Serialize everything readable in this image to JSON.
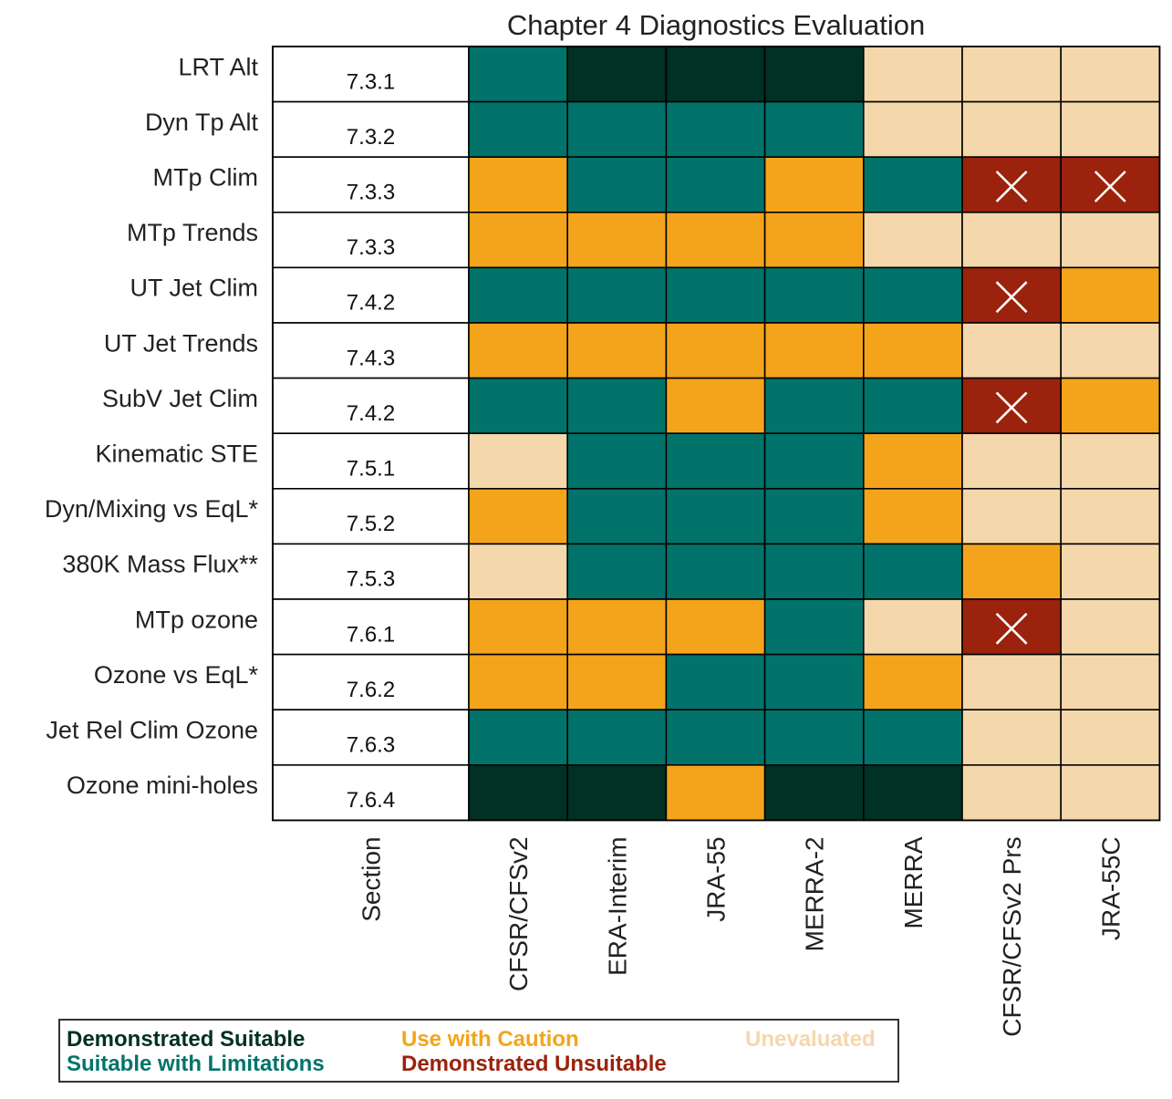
{
  "chart_data": {
    "type": "heatmap",
    "title": "Chapter 4 Diagnostics Evaluation",
    "rows": [
      "LRT Alt",
      "Dyn Tp Alt",
      "MTp Clim",
      "MTp Trends",
      "UT Jet Clim",
      "UT Jet Trends",
      "SubV Jet Clim",
      "Kinematic STE",
      "Dyn/Mixing vs EqL*",
      "380K Mass Flux**",
      "MTp ozone",
      "Ozone vs EqL*",
      "Jet Rel Clim Ozone",
      "Ozone mini-holes"
    ],
    "section_header": "Section",
    "sections": [
      "7.3.1",
      "7.3.2",
      "7.3.3",
      "7.3.3",
      "7.4.2",
      "7.4.3",
      "7.4.2",
      "7.5.1",
      "7.5.2",
      "7.5.3",
      "7.6.1",
      "7.6.2",
      "7.6.3",
      "7.6.4"
    ],
    "columns": [
      "CFSR/CFSv2",
      "ERA-Interim",
      "JRA-55",
      "MERRA-2",
      "MERRA",
      "CFSR/CFSv2 Prs",
      "JRA-55C"
    ],
    "category_codes": {
      "DS": "Demonstrated Suitable",
      "SL": "Suitable with Limitations",
      "UC": "Use with Caution",
      "DU": "Demonstrated Unsuitable",
      "UE": "Unevaluated"
    },
    "values": [
      [
        "SL",
        "DS",
        "DS",
        "DS",
        "UE",
        "UE",
        "UE"
      ],
      [
        "SL",
        "SL",
        "SL",
        "SL",
        "UE",
        "UE",
        "UE"
      ],
      [
        "UC",
        "SL",
        "SL",
        "UC",
        "SL",
        "DU",
        "DU"
      ],
      [
        "UC",
        "UC",
        "UC",
        "UC",
        "UE",
        "UE",
        "UE"
      ],
      [
        "SL",
        "SL",
        "SL",
        "SL",
        "SL",
        "DU",
        "UC"
      ],
      [
        "UC",
        "UC",
        "UC",
        "UC",
        "UC",
        "UE",
        "UE"
      ],
      [
        "SL",
        "SL",
        "UC",
        "SL",
        "SL",
        "DU",
        "UC"
      ],
      [
        "UE",
        "SL",
        "SL",
        "SL",
        "UC",
        "UE",
        "UE"
      ],
      [
        "UC",
        "SL",
        "SL",
        "SL",
        "UC",
        "UE",
        "UE"
      ],
      [
        "UE",
        "SL",
        "SL",
        "SL",
        "SL",
        "UC",
        "UE"
      ],
      [
        "UC",
        "UC",
        "UC",
        "SL",
        "UE",
        "DU",
        "UE"
      ],
      [
        "UC",
        "UC",
        "SL",
        "SL",
        "UC",
        "UE",
        "UE"
      ],
      [
        "SL",
        "SL",
        "SL",
        "SL",
        "SL",
        "UE",
        "UE"
      ],
      [
        "DS",
        "DS",
        "UC",
        "DS",
        "DS",
        "UE",
        "UE"
      ]
    ],
    "colors": {
      "DS": "#013024",
      "SL": "#01736A",
      "UC": "#F4A41A",
      "DU": "#9B220C",
      "UE": "#F5D7AC"
    },
    "unsuitable_marker": "×",
    "grid": true
  },
  "legend": [
    {
      "key": "DS",
      "label": "Demonstrated Suitable",
      "color": "#013024"
    },
    {
      "key": "SL",
      "label": "Suitable with Limitations",
      "color": "#01736A"
    },
    {
      "key": "UC",
      "label": "Use with Caution",
      "color": "#F4A41A"
    },
    {
      "key": "DU",
      "label": "Demonstrated Unsuitable",
      "color": "#9B220C"
    },
    {
      "key": "UE",
      "label": "Unevaluated",
      "color": "#F5D7AC"
    }
  ]
}
